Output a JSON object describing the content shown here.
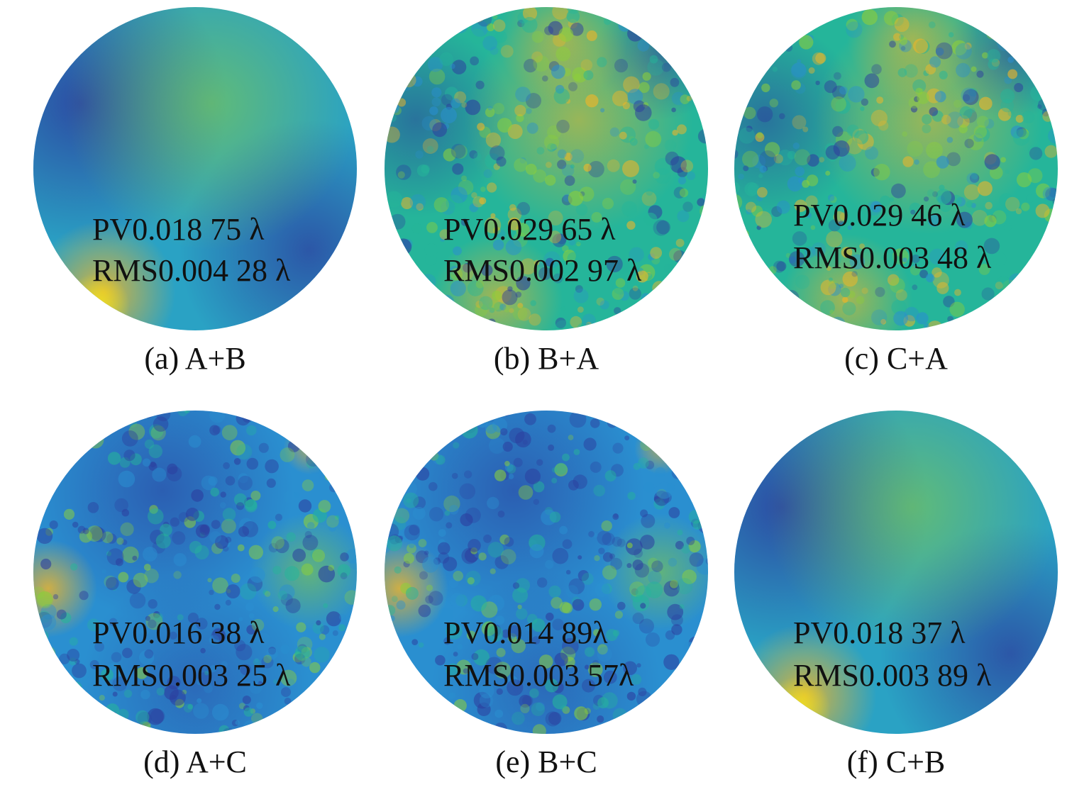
{
  "colors": {
    "low": "#2c3e9e",
    "mid_low": "#2a8fd0",
    "mid": "#25b59a",
    "mid_high": "#8ccf3a",
    "high": "#f6b624",
    "peak": "#f7e61b"
  },
  "panels": [
    {
      "caption": "(a) A+B",
      "pv": "PV0.018 75 λ",
      "rms": "RMS0.004 28 λ",
      "pattern": "smooth-gradient"
    },
    {
      "caption": "(b) B+A",
      "pv": "PV0.029 65 λ",
      "rms": "RMS0.002 97 λ",
      "pattern": "speckled-warm"
    },
    {
      "caption": "(c) C+A",
      "pv": "PV0.029 46 λ",
      "rms": "RMS0.003 48 λ",
      "pattern": "speckled-warm"
    },
    {
      "caption": "(d) A+C",
      "pv": "PV0.016 38 λ",
      "rms": "RMS0.003 25 λ",
      "pattern": "speckled-cool"
    },
    {
      "caption": "(e) B+C",
      "pv": "PV0.014 89λ",
      "rms": "RMS0.003 57λ",
      "pattern": "speckled-cool"
    },
    {
      "caption": "(f) C+B",
      "pv": "PV0.018 37 λ",
      "rms": "RMS0.003 89 λ",
      "pattern": "smooth-gradient"
    }
  ]
}
